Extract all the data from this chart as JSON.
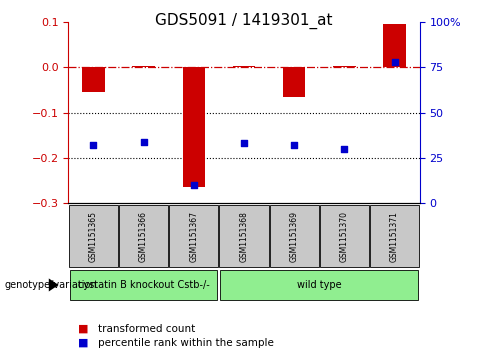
{
  "title": "GDS5091 / 1419301_at",
  "samples": [
    "GSM1151365",
    "GSM1151366",
    "GSM1151367",
    "GSM1151368",
    "GSM1151369",
    "GSM1151370",
    "GSM1151371"
  ],
  "transformed_count": [
    -0.055,
    0.002,
    -0.265,
    0.003,
    -0.065,
    0.002,
    0.095
  ],
  "percentile_rank": [
    32,
    34,
    10,
    33,
    32,
    30,
    78
  ],
  "groups": [
    {
      "label": "cystatin B knockout Cstb-/-",
      "start": 0,
      "end": 2,
      "color": "#90EE90"
    },
    {
      "label": "wild type",
      "start": 3,
      "end": 6,
      "color": "#90EE90"
    }
  ],
  "ylim_left": [
    -0.3,
    0.1
  ],
  "ylim_right": [
    0,
    100
  ],
  "yticks_left": [
    -0.3,
    -0.2,
    -0.1,
    0.0,
    0.1
  ],
  "yticks_right": [
    0,
    25,
    50,
    75,
    100
  ],
  "bar_color": "#CC0000",
  "dot_color": "#0000CC",
  "zero_line_color": "#CC0000",
  "dotted_line_color": "#000000",
  "bg_color": "#ffffff",
  "grid_lines": [
    -0.1,
    -0.2
  ],
  "sample_bg": "#C8C8C8",
  "title_fontsize": 11,
  "tick_fontsize": 8,
  "sample_fontsize": 5.5,
  "group_fontsize": 7,
  "legend_fontsize": 7.5,
  "geno_fontsize": 7
}
